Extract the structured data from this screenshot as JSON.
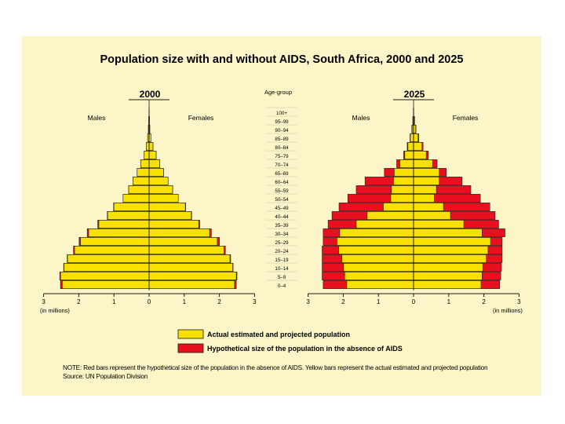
{
  "chart_data": {
    "type": "bar",
    "subtype": "population-pyramid",
    "title": "Population size with and without AIDS, South Africa, 2000 and 2025",
    "categories": [
      "0–4",
      "5–9",
      "10–14",
      "15–19",
      "20–24",
      "25–29",
      "30–34",
      "35–39",
      "40–44",
      "45–49",
      "50–54",
      "55–59",
      "60–64",
      "65–69",
      "70–74",
      "75–79",
      "80–84",
      "85–89",
      "90–94",
      "95–99",
      "100+"
    ],
    "center_label": "Age-group",
    "unit_label": "(in millions)",
    "xlim": [
      -3,
      3
    ],
    "xticks": [
      "3",
      "2",
      "1",
      "0",
      "1",
      "2",
      "3"
    ],
    "panels": [
      {
        "year": "2000",
        "left_label": "Males",
        "right_label": "Females",
        "male_actual": [
          2.47,
          2.52,
          2.42,
          2.32,
          2.12,
          1.95,
          1.72,
          1.43,
          1.18,
          1.0,
          0.74,
          0.58,
          0.46,
          0.34,
          0.24,
          0.14,
          0.08,
          0.04,
          0.02,
          0.01,
          0.003
        ],
        "male_no_aids": [
          2.52,
          2.54,
          2.43,
          2.33,
          2.15,
          1.99,
          1.76,
          1.46,
          1.19,
          1.01,
          0.74,
          0.58,
          0.46,
          0.34,
          0.24,
          0.14,
          0.08,
          0.04,
          0.02,
          0.01,
          0.003
        ],
        "female_actual": [
          2.43,
          2.48,
          2.38,
          2.3,
          2.13,
          1.94,
          1.72,
          1.41,
          1.2,
          1.03,
          0.83,
          0.67,
          0.54,
          0.41,
          0.3,
          0.2,
          0.11,
          0.05,
          0.02,
          0.01,
          0.003
        ],
        "female_no_aids": [
          2.48,
          2.5,
          2.39,
          2.32,
          2.17,
          2.0,
          1.77,
          1.44,
          1.21,
          1.04,
          0.83,
          0.67,
          0.54,
          0.41,
          0.3,
          0.2,
          0.11,
          0.05,
          0.02,
          0.01,
          0.003
        ]
      },
      {
        "year": "2025",
        "left_label": "Males",
        "right_label": "Females",
        "male_actual": [
          1.9,
          1.96,
          1.99,
          2.04,
          2.13,
          2.18,
          2.1,
          1.63,
          1.32,
          0.86,
          0.65,
          0.63,
          0.57,
          0.55,
          0.39,
          0.25,
          0.16,
          0.09,
          0.04,
          0.02,
          0.005
        ],
        "male_no_aids": [
          2.57,
          2.6,
          2.6,
          2.6,
          2.6,
          2.57,
          2.57,
          2.43,
          2.32,
          2.12,
          1.87,
          1.63,
          1.38,
          0.83,
          0.48,
          0.28,
          0.18,
          0.1,
          0.05,
          0.02,
          0.005
        ],
        "female_actual": [
          1.92,
          1.95,
          1.97,
          2.07,
          2.12,
          2.19,
          1.95,
          1.43,
          1.05,
          0.85,
          0.59,
          0.65,
          0.73,
          0.73,
          0.54,
          0.36,
          0.24,
          0.13,
          0.06,
          0.02,
          0.005
        ],
        "female_no_aids": [
          2.45,
          2.48,
          2.5,
          2.52,
          2.52,
          2.52,
          2.6,
          2.42,
          2.32,
          2.17,
          1.9,
          1.63,
          1.38,
          0.93,
          0.67,
          0.42,
          0.27,
          0.15,
          0.07,
          0.03,
          0.005
        ]
      }
    ],
    "legend": [
      {
        "label": "Actual estimated and projected population",
        "color": "#f8e000"
      },
      {
        "label": "Hypothetical size of the population in the absence of AIDS",
        "color": "#e8101e"
      }
    ],
    "notes": [
      "NOTE: Red bars represent the hypothetical size of the population in the absence of AIDS. Yellow bars represent the actual estimated and projected population",
      "Source: UN Population Division"
    ]
  },
  "colors": {
    "actual": "#f8e000",
    "no_aids": "#e8101e",
    "panel_bg": "#fbf5c7",
    "outline": "#1a1a1a"
  }
}
